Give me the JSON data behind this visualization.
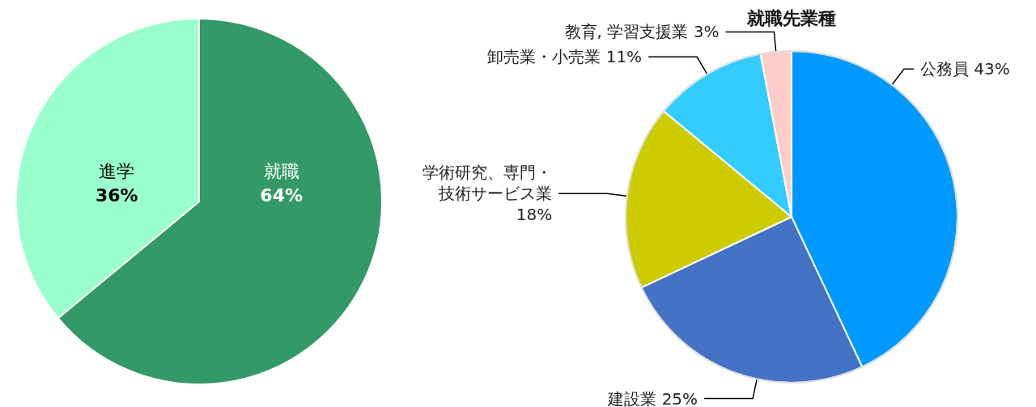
{
  "chart_data": [
    {
      "type": "pie",
      "categories": [
        "就職",
        "進学"
      ],
      "values": [
        64,
        36
      ],
      "colors": [
        "#339966",
        "#99ffcc"
      ],
      "value_labels": [
        "64%",
        "36%"
      ]
    },
    {
      "type": "pie",
      "title": "就職先業種",
      "categories": [
        "公務員",
        "建設業",
        "学術研究、専門・技術サービス業",
        "卸売業・小売業",
        "教育, 学習支援業"
      ],
      "values": [
        43,
        25,
        18,
        11,
        3
      ],
      "colors": [
        "#0099ff",
        "#4472c4",
        "#cccc00",
        "#33ccff",
        "#ffcccc"
      ],
      "value_labels": [
        "43%",
        "25%",
        "18%",
        "11%",
        "3%"
      ]
    }
  ]
}
